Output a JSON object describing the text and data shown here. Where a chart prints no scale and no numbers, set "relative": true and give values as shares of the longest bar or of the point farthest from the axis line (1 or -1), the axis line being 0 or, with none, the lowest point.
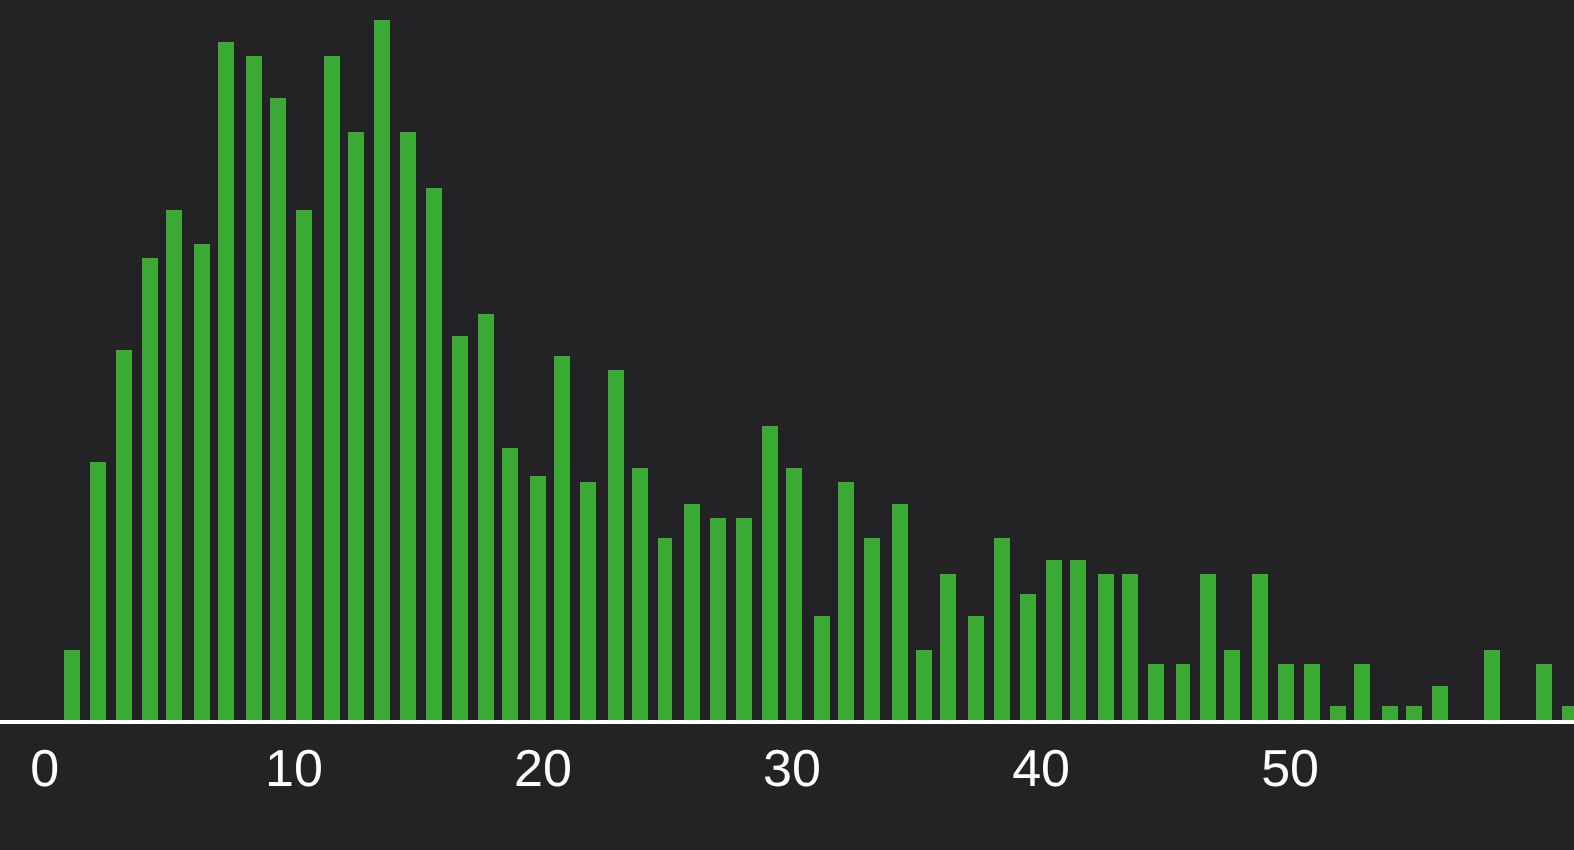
{
  "chart_data": {
    "type": "bar",
    "relative": true,
    "color": "#3aaa35",
    "x": [
      1.1,
      2.1,
      3.2,
      4.2,
      5.2,
      6.3,
      7.3,
      8.4,
      9.4,
      10.4,
      11.5,
      12.5,
      13.5,
      14.6,
      15.6,
      16.7,
      17.7,
      18.7,
      19.8,
      20.8,
      21.8,
      22.9,
      23.9,
      24.9,
      26.0,
      27.0,
      28.1,
      29.1,
      30.1,
      31.2,
      32.2,
      33.2,
      34.3,
      35.3,
      36.3,
      37.4,
      38.4,
      39.5,
      40.5,
      41.5,
      42.6,
      43.6,
      44.6,
      45.7,
      46.7,
      47.7,
      48.8,
      49.8,
      50.9,
      51.9,
      52.9,
      54.0,
      55.0,
      56.0,
      57.1,
      58.1,
      59.2,
      60.2,
      61.2
    ],
    "values": [
      0.1,
      0.37,
      0.53,
      0.66,
      0.73,
      0.68,
      0.97,
      0.95,
      0.89,
      0.73,
      0.95,
      0.84,
      1,
      0.84,
      0.76,
      0.55,
      0.58,
      0.39,
      0.35,
      0.52,
      0.34,
      0.5,
      0.36,
      0.26,
      0.31,
      0.29,
      0.29,
      0.42,
      0.36,
      0.15,
      0.34,
      0.26,
      0.31,
      0.1,
      0.21,
      0.15,
      0.26,
      0.18,
      0.23,
      0.23,
      0.21,
      0.21,
      0.08,
      0.08,
      0.21,
      0.1,
      0.21,
      0.08,
      0.08,
      0.02,
      0.08,
      0.02,
      0.02,
      0.05,
      0,
      0.1,
      0,
      0.08,
      0.02
    ],
    "xlim": [
      -1.8,
      61.4
    ],
    "xticks": [
      0,
      10,
      20,
      30,
      40,
      50
    ]
  }
}
